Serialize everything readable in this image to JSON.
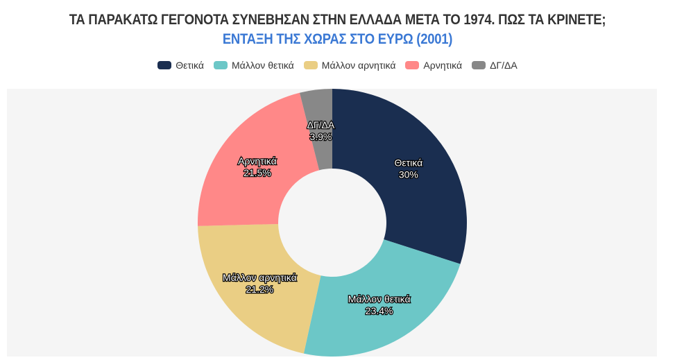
{
  "title": {
    "line1": "ΤΑ ΠΑΡΑΚΑΤΩ ΓΕΓΟΝΟΤΑ ΣΥΝΕΒΗΣΑΝ ΣΤΗΝ ΕΛΛΑΔΑ ΜΕΤΑ ΤΟ 1974. ΠΩΣ ΤΑ ΚΡΙΝΕΤΕ;",
    "line2": "ΕΝΤΑΞΗ ΤΗΣ ΧΩΡΑΣ ΣΤΟ ΕΥΡΩ (2001)"
  },
  "legend": [
    {
      "label": "Θετικά",
      "color": "#1a2e50"
    },
    {
      "label": "Μάλλον θετικά",
      "color": "#6cc7c7"
    },
    {
      "label": "Μάλλον αρνητικά",
      "color": "#eace84"
    },
    {
      "label": "Αρνητικά",
      "color": "#ff8888"
    },
    {
      "label": "ΔΓ/ΔΑ",
      "color": "#888888"
    }
  ],
  "slices": [
    {
      "label": "Θετικά",
      "value_label": "30%"
    },
    {
      "label": "Μάλλον θετικά",
      "value_label": "23.4%"
    },
    {
      "label": "Μάλλον αρνητικά",
      "value_label": "21.2%"
    },
    {
      "label": "Αρνητικά",
      "value_label": "21.5%"
    },
    {
      "label": "ΔΓ/ΔΑ",
      "value_label": "3.9%"
    }
  ],
  "chart_data": {
    "type": "pie",
    "subtype": "donut",
    "title": "ΤΑ ΠΑΡΑΚΑΤΩ ΓΕΓΟΝΟΤΑ ΣΥΝΕΒΗΣΑΝ ΣΤΗΝ ΕΛΛΑΔΑ ΜΕΤΑ ΤΟ 1974. ΠΩΣ ΤΑ ΚΡΙΝΕΤΕ;",
    "subtitle": "ΕΝΤΑΞΗ ΤΗΣ ΧΩΡΑΣ ΣΤΟ ΕΥΡΩ (2001)",
    "categories": [
      "Θετικά",
      "Μάλλον θετικά",
      "Μάλλον αρνητικά",
      "Αρνητικά",
      "ΔΓ/ΔΑ"
    ],
    "values": [
      30,
      23.4,
      21.2,
      21.5,
      3.9
    ],
    "colors": [
      "#1a2e50",
      "#6cc7c7",
      "#eace84",
      "#ff8888",
      "#888888"
    ],
    "legend_position": "top",
    "start_angle": "12 o'clock, clockwise"
  }
}
